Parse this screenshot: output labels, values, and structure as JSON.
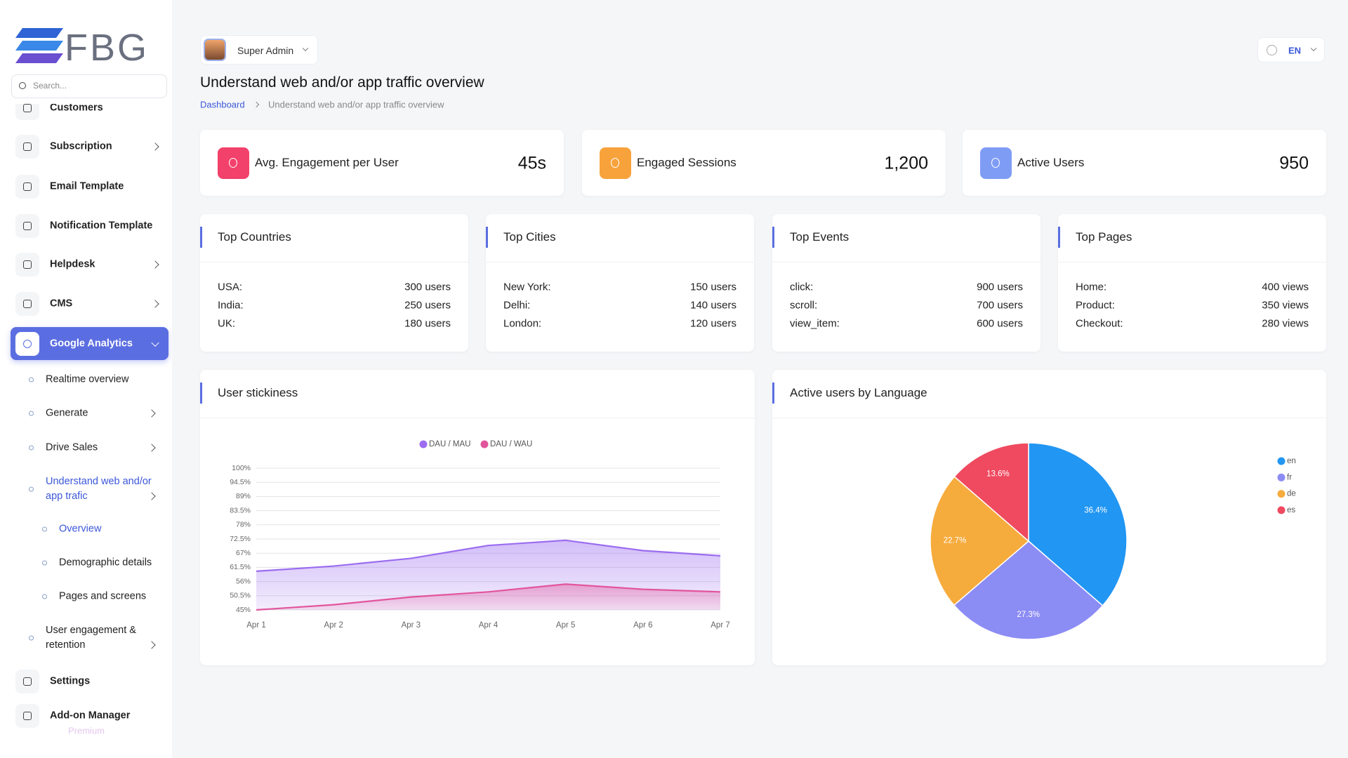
{
  "sidebar": {
    "logo": "FBG",
    "search_placeholder": "Search...",
    "items": [
      {
        "label": "Customers"
      },
      {
        "label": "Subscription"
      },
      {
        "label": "Email Template"
      },
      {
        "label": "Notification Template"
      },
      {
        "label": "Helpdesk"
      },
      {
        "label": "CMS"
      },
      {
        "label": "Google Analytics"
      },
      {
        "label": "Realtime overview"
      },
      {
        "label": "Generate"
      },
      {
        "label": "Drive Sales"
      },
      {
        "label": "Understand web and/or app trafic"
      },
      {
        "label": "Overview"
      },
      {
        "label": "Demographic details"
      },
      {
        "label": "Pages and screens"
      },
      {
        "label": "User engagement & retention"
      },
      {
        "label": "Settings"
      },
      {
        "label": "Add-on Manager",
        "badge": "Premium"
      }
    ]
  },
  "header": {
    "user": "Super Admin",
    "language": "EN",
    "title": "Understand web and/or app traffic overview",
    "breadcrumb": [
      "Dashboard",
      "Understand web and/or app traffic overview"
    ]
  },
  "stats": [
    {
      "label": "Avg. Engagement per User",
      "value": "45s"
    },
    {
      "label": "Engaged Sessions",
      "value": "1,200"
    },
    {
      "label": "Active Users",
      "value": "950"
    }
  ],
  "lists": [
    {
      "title": "Top Countries",
      "rows": [
        [
          "USA:",
          "300 users"
        ],
        [
          "India:",
          "250 users"
        ],
        [
          "UK:",
          "180 users"
        ]
      ]
    },
    {
      "title": "Top Cities",
      "rows": [
        [
          "New York:",
          "150 users"
        ],
        [
          "Delhi:",
          "140 users"
        ],
        [
          "London:",
          "120 users"
        ]
      ]
    },
    {
      "title": "Top Events",
      "rows": [
        [
          "click:",
          "900 users"
        ],
        [
          "scroll:",
          "700 users"
        ],
        [
          "view_item:",
          "600 users"
        ]
      ]
    },
    {
      "title": "Top Pages",
      "rows": [
        [
          "Home:",
          "400 views"
        ],
        [
          "Product:",
          "350 views"
        ],
        [
          "Checkout:",
          "280 views"
        ]
      ]
    }
  ],
  "chart_data": [
    {
      "type": "line",
      "title": "User stickiness",
      "area": true,
      "grid": true,
      "categories": [
        "Apr 1",
        "Apr 2",
        "Apr 3",
        "Apr 4",
        "Apr 5",
        "Apr 6",
        "Apr 7"
      ],
      "series": [
        {
          "name": "DAU / MAU",
          "color": "#9b6cf0",
          "values": [
            60,
            62,
            65,
            70,
            72,
            68,
            66
          ]
        },
        {
          "name": "DAU / WAU",
          "color": "#e2559c",
          "values": [
            45,
            47,
            50,
            52,
            55,
            53,
            52
          ]
        }
      ],
      "ylim": [
        45,
        100
      ],
      "yticks": [
        {
          "value": 100,
          "label": "100%"
        },
        {
          "value": 94.5,
          "label": "94.5%"
        },
        {
          "value": 89,
          "label": "89%"
        },
        {
          "value": 83.5,
          "label": "83.5%"
        },
        {
          "value": 78,
          "label": "78%"
        },
        {
          "value": 72.5,
          "label": "72.5%"
        },
        {
          "value": 67,
          "label": "67%"
        },
        {
          "value": 61.5,
          "label": "61.5%"
        },
        {
          "value": 56,
          "label": "56%"
        },
        {
          "value": 50.5,
          "label": "50.5%"
        },
        {
          "value": 45,
          "label": "45%"
        }
      ]
    },
    {
      "type": "pie",
      "title": "Active users by Language",
      "legend": "right",
      "categories": [
        "en",
        "fr",
        "de",
        "es"
      ],
      "values": [
        36.4,
        27.3,
        22.7,
        13.6
      ],
      "value_labels": [
        "36.4%",
        "27.3%",
        "22.7%",
        "13.6%"
      ],
      "colors": [
        "#2196f3",
        "#8c8cf5",
        "#f6ab3d",
        "#ef4a5f"
      ]
    }
  ]
}
